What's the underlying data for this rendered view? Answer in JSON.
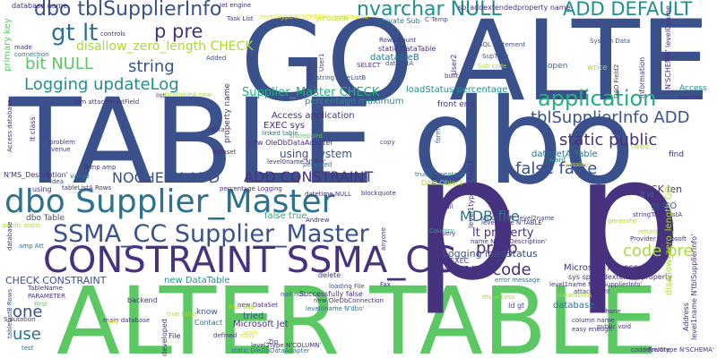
{
  "palette": {
    "purple": "#46327e",
    "indigo": "#3b518b",
    "blue": "#2c718e",
    "teal": "#21908d",
    "green": "#27ad81",
    "lime": "#5cc863",
    "yellowgreen": "#aadc32",
    "yellow": "#e7e419"
  },
  "words": [
    {
      "text": "GO ALTER"
    },
    {
      "text": "TABLE dbo"
    },
    {
      "text": "ALTER TABLE"
    },
    {
      "text": "p p"
    },
    {
      "text": "CONSTRAINT SSMA_CC"
    },
    {
      "text": "dbo Supplier_Master"
    },
    {
      "text": "SSMA_CC Supplier_Master"
    },
    {
      "text": "dbo tblSupplierInfo"
    },
    {
      "text": "nvarchar NULL"
    },
    {
      "text": "ADD DEFAULT"
    },
    {
      "text": "gt lt"
    },
    {
      "text": "p pre"
    },
    {
      "text": "disallow_zero_length CHECK"
    },
    {
      "text": "bit NULL"
    },
    {
      "text": "string"
    },
    {
      "text": "Logging updateLog"
    },
    {
      "text": "application"
    },
    {
      "text": "Supplier_Master CHECK"
    },
    {
      "text": "tblSupplierInfo ADD"
    },
    {
      "text": "static public"
    },
    {
      "text": "false false"
    },
    {
      "text": "NOCHECK ADD"
    },
    {
      "text": "ADD CONSTRAINT"
    },
    {
      "text": "MDB file"
    },
    {
      "text": "using System"
    },
    {
      "text": "lt property"
    },
    {
      "text": "pre p"
    },
    {
      "text": "code pre"
    },
    {
      "text": "one"
    },
    {
      "text": "use"
    },
    {
      "text": "pre code"
    },
    {
      "text": "Access application"
    },
    {
      "text": "EXEC sys"
    },
    {
      "text": "loadStatus percentage"
    },
    {
      "text": "percentage maximum"
    },
    {
      "text": "Logging loadStatus"
    },
    {
      "text": "CHECK len"
    },
    {
      "text": "gt GO"
    },
    {
      "text": "Microsoft Access"
    },
    {
      "text": "database"
    },
    {
      "text": "new DataTable"
    },
    {
      "text": "CHECK CONSTRAINT"
    },
    {
      "text": "false true"
    },
    {
      "text": "DAO Object"
    },
    {
      "text": "datasetA Table"
    },
    {
      "text": "sp_addextendedproperty name"
    },
    {
      "text": "Private Sub"
    },
    {
      "text": "static DataTable"
    },
    {
      "text": "datatableB"
    },
    {
      "text": "Rows Count"
    },
    {
      "text": "Jet engine"
    },
    {
      "text": "Task List"
    },
    {
      "text": "Jet OLEDB"
    },
    {
      "text": "Added"
    },
    {
      "text": "datasetA"
    },
    {
      "text": "SQL statement"
    },
    {
      "text": "SupType"
    },
    {
      "text": "Sub code"
    },
    {
      "text": "stringTableListB"
    },
    {
      "text": "SELECT"
    },
    {
      "text": "built"
    },
    {
      "text": "open"
    },
    {
      "text": "write"
    },
    {
      "text": "System Data"
    },
    {
      "text": "Access"
    },
    {
      "text": "rewrite"
    },
    {
      "text": "front end"
    },
    {
      "text": "linked table"
    },
    {
      "text": "new OleDbDataAdapter"
    },
    {
      "text": "Sharepoint"
    },
    {
      "text": "data"
    },
    {
      "text": "copy"
    },
    {
      "text": "level0name N'dbo'"
    },
    {
      "text": "persisted"
    },
    {
      "text": "true percentage"
    },
    {
      "text": "possible"
    },
    {
      "text": "find"
    },
    {
      "text": "want"
    },
    {
      "text": "need"
    },
    {
      "text": "lt id"
    },
    {
      "text": "stringTableListA"
    },
    {
      "text": "generate"
    },
    {
      "text": "return"
    },
    {
      "text": "Provider Microsoft"
    },
    {
      "text": "N'COLUMN' level2name"
    },
    {
      "text": "level1type N'TABLE'"
    },
    {
      "text": "blockquote"
    },
    {
      "text": "datetime NULL"
    },
    {
      "text": "percentage Logging"
    },
    {
      "text": "tableListA Rows"
    },
    {
      "text": "dbo Table"
    },
    {
      "text": "public static"
    },
    {
      "text": "amp Att"
    },
    {
      "text": "Temp amp"
    },
    {
      "text": "idea"
    },
    {
      "text": "using"
    },
    {
      "text": "value"
    },
    {
      "text": "N'MS_Description'"
    },
    {
      "text": "problem"
    },
    {
      "text": "venue"
    },
    {
      "text": "dataset"
    },
    {
      "text": "property name"
    },
    {
      "text": "lt class"
    },
    {
      "text": "controls"
    },
    {
      "text": "made"
    },
    {
      "text": "connection"
    },
    {
      "text": "database name"
    },
    {
      "text": "Dim attachmentField"
    },
    {
      "text": "primary key"
    },
    {
      "text": "list"
    },
    {
      "text": "datatableA new"
    },
    {
      "text": "Access database"
    },
    {
      "text": "Andrew"
    },
    {
      "text": "EMail"
    },
    {
      "text": "query"
    },
    {
      "text": "Country"
    },
    {
      "text": "anyone"
    },
    {
      "text": "GO EXEC"
    },
    {
      "text": "anyone suggest"
    },
    {
      "text": "error message"
    },
    {
      "text": "name N'MS_Description'"
    },
    {
      "text": "sys sp_addextendedproperty"
    },
    {
      "text": "attachment"
    },
    {
      "text": "column name"
    },
    {
      "text": "easy enough"
    },
    {
      "text": "public void"
    },
    {
      "text": "code Private"
    },
    {
      "text": "Phone"
    },
    {
      "text": "Id gt"
    },
    {
      "text": "loading File"
    },
    {
      "text": "Successfully false"
    },
    {
      "text": "new OleDbConnection"
    },
    {
      "text": "level0name N'dbo'"
    },
    {
      "text": "tried"
    },
    {
      "text": "level2type N'COLUMN'"
    },
    {
      "text": "new DataSet"
    },
    {
      "text": "End Sub"
    },
    {
      "text": "Zip"
    },
    {
      "text": "static OleDbDataAdapter"
    },
    {
      "text": "Microsoft Jet"
    },
    {
      "text": "delete"
    },
    {
      "text": "null null"
    },
    {
      "text": "know"
    },
    {
      "text": "true false"
    },
    {
      "text": "backend"
    },
    {
      "text": "TableName"
    },
    {
      "text": "PARAMETER"
    },
    {
      "text": "First"
    },
    {
      "text": "Salutation"
    },
    {
      "text": "main database"
    },
    {
      "text": "File"
    },
    {
      "text": "developed"
    },
    {
      "text": "Contact"
    },
    {
      "text": "work"
    },
    {
      "text": "easy"
    },
    {
      "text": "defined"
    },
    {
      "text": "say"
    },
    {
      "text": "test"
    },
    {
      "text": "level1name N'tblSupplierInfo'"
    },
    {
      "text": "tableListB Rows"
    },
    {
      "text": "disallow_zero_length GO"
    },
    {
      "text": "level0type N'SCHEMA'"
    },
    {
      "text": "level1type N'TABLE'"
    },
    {
      "text": "level0type N'SCHEMA' level0name"
    },
    {
      "text": "C Temp"
    },
    {
      "text": "father"
    },
    {
      "text": "User1"
    },
    {
      "text": "User2"
    },
    {
      "text": "still"
    },
    {
      "text": "DAO Field2"
    },
    {
      "text": "information"
    },
    {
      "text": "N'SCHEMA' level0name"
    },
    {
      "text": "datatableA"
    },
    {
      "text": "level1name N'tblSupplierInfo'"
    },
    {
      "text": "Address"
    },
    {
      "text": "Fax"
    },
    {
      "text": "ms access"
    },
    {
      "text": "way"
    },
    {
      "text": "form"
    },
    {
      "text": "database"
    },
    {
      "text": "user"
    },
    {
      "text": "Outlook Application"
    },
    {
      "text": "userId"
    }
  ]
}
